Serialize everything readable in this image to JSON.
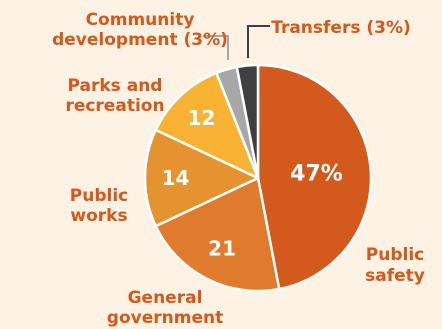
{
  "chart_data": {
    "type": "pie",
    "slices": [
      {
        "label": [
          "Public",
          "safety"
        ],
        "value": 47,
        "display": "47%",
        "color": "#d3591c",
        "label_color": "#d3591c"
      },
      {
        "label": [
          "General",
          "government"
        ],
        "value": 21,
        "display": "21",
        "color": "#e07a2c",
        "label_color": "#d3591c"
      },
      {
        "label": [
          "Public",
          "works"
        ],
        "value": 14,
        "display": "14",
        "color": "#e59230",
        "label_color": "#d3591c"
      },
      {
        "label": [
          "Parks and",
          "recreation"
        ],
        "value": 12,
        "display": "12",
        "color": "#f8b234",
        "label_color": "#d3591c"
      },
      {
        "label": [
          "Community",
          "development (3%)"
        ],
        "value": 3,
        "display": "",
        "color": "#a7a7a7",
        "label_color": "#d3591c"
      },
      {
        "label": [
          "Transfers (3%)"
        ],
        "value": 3,
        "display": "",
        "color": "#3f3f3f",
        "label_color": "#d3591c"
      }
    ]
  }
}
